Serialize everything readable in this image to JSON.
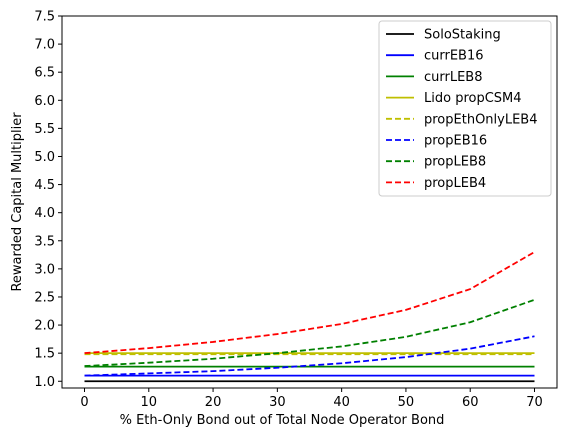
{
  "chart_data": {
    "type": "line",
    "xlabel": "% Eth-Only Bond out of Total Node Operator Bond",
    "ylabel": "Rewarded Capital Multiplier",
    "xlim": [
      -3.5,
      73.5
    ],
    "ylim": [
      0.88,
      7.5
    ],
    "xticks": [
      0,
      10,
      20,
      30,
      40,
      50,
      60,
      70
    ],
    "yticks": [
      1.0,
      1.5,
      2.0,
      2.5,
      3.0,
      3.5,
      4.0,
      4.5,
      5.0,
      5.5,
      6.0,
      6.5,
      7.0,
      7.5
    ],
    "ytick_labels": [
      "1.0",
      "1.5",
      "2.0",
      "2.5",
      "3.0",
      "3.5",
      "4.0",
      "4.5",
      "5.0",
      "5.5",
      "6.0",
      "6.5",
      "7.0",
      "7.5"
    ],
    "grid": false,
    "legend_position": "top-right",
    "x": [
      0,
      10,
      20,
      30,
      40,
      50,
      60,
      70
    ],
    "series": [
      {
        "name": "SoloStaking",
        "color": "#000000",
        "dash": "solid",
        "values": [
          1.0,
          1.0,
          1.0,
          1.0,
          1.0,
          1.0,
          1.0,
          1.0
        ]
      },
      {
        "name": "currEB16",
        "color": "#0000ff",
        "dash": "solid",
        "values": [
          1.1,
          1.1,
          1.1,
          1.1,
          1.1,
          1.1,
          1.1,
          1.1
        ]
      },
      {
        "name": "currLEB8",
        "color": "#008000",
        "dash": "solid",
        "values": [
          1.26,
          1.26,
          1.26,
          1.26,
          1.26,
          1.26,
          1.26,
          1.26
        ]
      },
      {
        "name": "Lido propCSM4",
        "color": "#bfbf00",
        "dash": "solid",
        "values": [
          1.5,
          1.5,
          1.5,
          1.5,
          1.5,
          1.5,
          1.5,
          1.5
        ]
      },
      {
        "name": "propEthOnlyLEB4",
        "color": "#bfbf00",
        "dash": "dashed",
        "values": [
          1.48,
          1.48,
          1.48,
          1.48,
          1.48,
          1.48,
          1.48,
          1.48
        ]
      },
      {
        "name": "propEB16",
        "color": "#0000ff",
        "dash": "dashed",
        "values": [
          1.1,
          1.14,
          1.18,
          1.24,
          1.32,
          1.43,
          1.58,
          1.8
        ]
      },
      {
        "name": "propLEB8",
        "color": "#008000",
        "dash": "dashed",
        "values": [
          1.27,
          1.33,
          1.4,
          1.5,
          1.62,
          1.79,
          2.05,
          2.45
        ]
      },
      {
        "name": "propLEB4",
        "color": "#ff0000",
        "dash": "dashed",
        "values": [
          1.5,
          1.59,
          1.7,
          1.84,
          2.02,
          2.27,
          2.64,
          3.3
        ]
      }
    ]
  }
}
